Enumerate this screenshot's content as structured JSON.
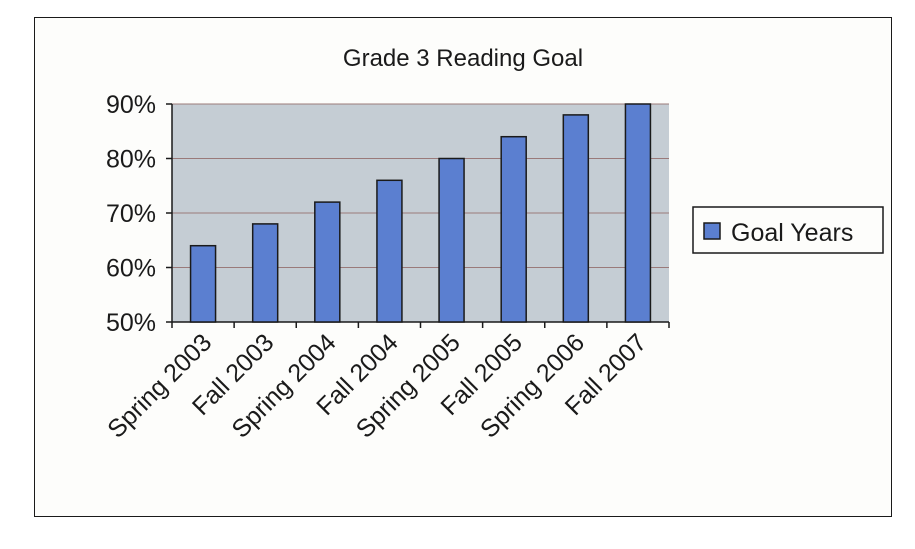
{
  "colors": {
    "plot_area": "#c5cdd4",
    "bar_fill": "#5b7fd0",
    "bar_stroke": "#1a1a1a",
    "gridline": "#9a7a7a"
  },
  "chart_data": {
    "type": "bar",
    "title": "Grade 3 Reading Goal",
    "xlabel": "",
    "ylabel": "",
    "categories": [
      "Spring 2003",
      "Fall 2003",
      "Spring 2004",
      "Fall 2004",
      "Spring 2005",
      "Fall 2005",
      "Spring 2006",
      "Fall 2007"
    ],
    "series": [
      {
        "name": "Goal Years",
        "values": [
          64,
          68,
          72,
          76,
          80,
          84,
          88,
          90
        ]
      }
    ],
    "ylim": [
      50,
      90
    ],
    "yticks": [
      50,
      60,
      70,
      80,
      90
    ],
    "ytick_labels": [
      "50%",
      "60%",
      "70%",
      "80%",
      "90%"
    ],
    "grid": true,
    "legend_position": "right"
  }
}
